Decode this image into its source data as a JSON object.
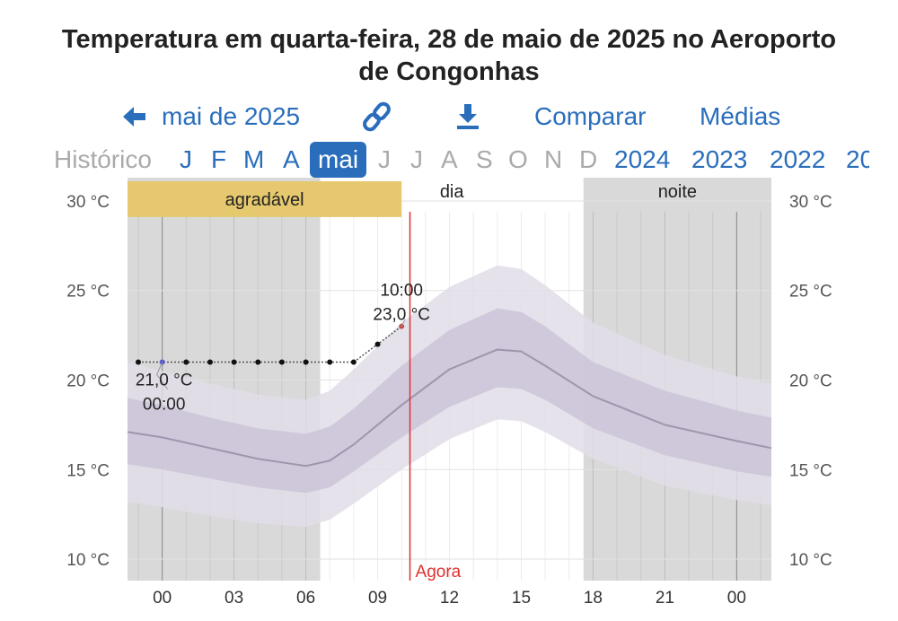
{
  "title_line1": "Temperatura em quarta-feira, 28 de maio de 2025 no Aeroporto",
  "title_line2": "de Congonhas",
  "nav": {
    "back_label": "mai de 2025",
    "compare_label": "Comparar",
    "averages_label": "Médias"
  },
  "months": {
    "history_label": "Histórico",
    "items": [
      "J",
      "F",
      "M",
      "A",
      "mai",
      "J",
      "J",
      "A",
      "S",
      "O",
      "N",
      "D",
      "2024",
      "2023",
      "2022",
      "20"
    ]
  },
  "colors": {
    "link": "#2a6ebb",
    "night_band": "#d9d9d9",
    "comfort_band": "#e6c86e",
    "now_line": "#e03030",
    "band_outer": "#e2dde9",
    "band_inner": "#cbc4d8",
    "mean_line": "#9d96ad"
  },
  "chart_data": {
    "type": "line",
    "xlabel": "",
    "ylabel": "",
    "x_ticks": [
      "00",
      "03",
      "06",
      "09",
      "12",
      "15",
      "18",
      "21",
      "00"
    ],
    "y_ticks": [
      "10 °C",
      "15 °C",
      "20 °C",
      "25 °C",
      "30 °C"
    ],
    "ylim": [
      8.8,
      31.3
    ],
    "xlim_hours": [
      -1.45,
      25.45
    ],
    "periods": [
      {
        "label": "noite",
        "from": -1.45,
        "to": 6.6
      },
      {
        "label": "dia",
        "from": 6.6,
        "to": 17.6
      },
      {
        "label": "noite",
        "from": 17.6,
        "to": 25.45
      }
    ],
    "comfort_band": {
      "label": "agradável",
      "from": -1.45,
      "to": 10.0,
      "low": 29.1,
      "high": 31.1
    },
    "now": {
      "label": "Agora",
      "hour": 10.35
    },
    "series": [
      {
        "role": "observed",
        "x": [
          -1,
          0,
          1,
          2,
          3,
          4,
          5,
          6,
          7,
          8,
          9,
          10
        ],
        "y": [
          21,
          21,
          21,
          21,
          21,
          21,
          21,
          21,
          21,
          21,
          22,
          23
        ]
      },
      {
        "role": "mean",
        "x": [
          -1.45,
          0,
          2,
          4,
          6,
          7,
          8,
          10,
          12,
          14,
          15,
          16,
          18,
          21,
          24,
          25.45
        ],
        "y": [
          17.1,
          16.8,
          16.2,
          15.6,
          15.2,
          15.5,
          16.4,
          18.6,
          20.6,
          21.7,
          21.6,
          20.8,
          19.1,
          17.5,
          16.6,
          16.2
        ]
      },
      {
        "role": "p25-p75",
        "x": [
          -1.45,
          0,
          2,
          4,
          6,
          7,
          8,
          10,
          12,
          14,
          15,
          16,
          18,
          21,
          24,
          25.45
        ],
        "low": [
          15.3,
          15.0,
          14.5,
          14.0,
          13.7,
          14.0,
          14.9,
          16.8,
          18.5,
          19.6,
          19.5,
          18.9,
          17.3,
          15.8,
          14.9,
          14.6
        ],
        "high": [
          19.0,
          18.6,
          17.9,
          17.3,
          17.0,
          17.4,
          18.4,
          20.8,
          22.8,
          24.0,
          23.8,
          23.0,
          21.0,
          19.4,
          18.3,
          17.9
        ]
      },
      {
        "role": "p10-p90",
        "x": [
          -1.45,
          0,
          2,
          4,
          6,
          7,
          8,
          10,
          12,
          14,
          15,
          16,
          18,
          21,
          24,
          25.45
        ],
        "low": [
          13.2,
          12.9,
          12.4,
          12.0,
          11.8,
          12.2,
          13.1,
          15.0,
          16.7,
          17.8,
          17.7,
          17.1,
          15.6,
          14.1,
          13.3,
          13.0
        ],
        "high": [
          21.0,
          20.5,
          19.8,
          19.2,
          18.9,
          19.4,
          20.6,
          23.2,
          25.2,
          26.4,
          26.2,
          25.3,
          23.2,
          21.4,
          20.2,
          19.8
        ]
      }
    ],
    "annotations": [
      {
        "time": "00:00",
        "value": "21,0 °C"
      },
      {
        "time": "10:00",
        "value": "23,0 °C"
      }
    ]
  }
}
